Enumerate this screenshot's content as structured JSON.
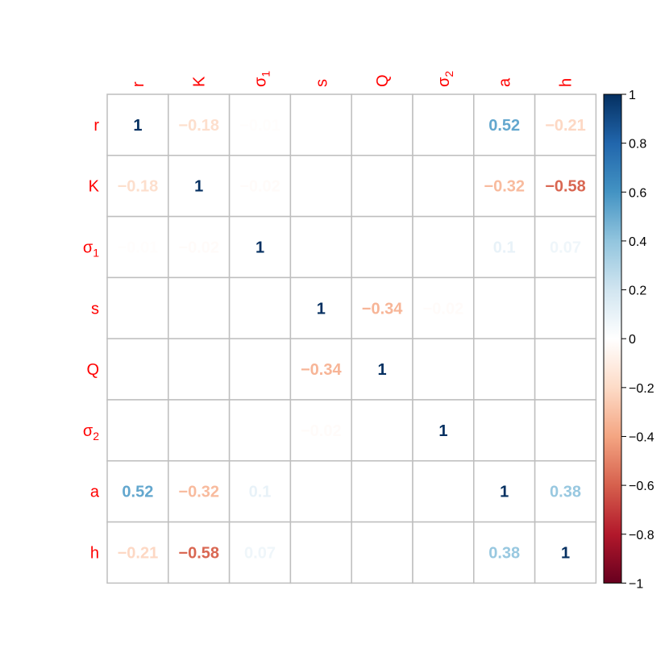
{
  "chart_data": {
    "type": "heatmap",
    "title": "",
    "variables": [
      {
        "base": "r",
        "sub": ""
      },
      {
        "base": "K",
        "sub": ""
      },
      {
        "base": "σ",
        "sub": "1"
      },
      {
        "base": "s",
        "sub": ""
      },
      {
        "base": "Q",
        "sub": ""
      },
      {
        "base": "σ",
        "sub": "2"
      },
      {
        "base": "a",
        "sub": ""
      },
      {
        "base": "h",
        "sub": ""
      }
    ],
    "matrix": [
      [
        1,
        -0.18,
        -0.01,
        0,
        0,
        0,
        0.52,
        -0.21
      ],
      [
        -0.18,
        1,
        -0.02,
        0,
        0,
        0,
        -0.32,
        -0.58
      ],
      [
        -0.01,
        -0.02,
        1,
        0,
        0,
        0,
        0.1,
        0.07
      ],
      [
        0,
        0,
        0,
        1,
        -0.34,
        -0.02,
        0,
        0
      ],
      [
        0,
        0,
        0,
        -0.34,
        1,
        0,
        0,
        0
      ],
      [
        0,
        0,
        0,
        -0.02,
        0,
        1,
        0,
        0
      ],
      [
        0.52,
        -0.32,
        0.1,
        0,
        0,
        0,
        1,
        0.38
      ],
      [
        -0.21,
        -0.58,
        0.07,
        0,
        0,
        0,
        0.38,
        1
      ]
    ],
    "displayed_labels": [
      [
        "1",
        "−0.18",
        "−0.01",
        "",
        "",
        "",
        "0.52",
        "−0.21"
      ],
      [
        "−0.18",
        "1",
        "−0.02",
        "",
        "",
        "",
        "−0.32",
        "−0.58"
      ],
      [
        "−0.01",
        "−0.02",
        "1",
        "",
        "",
        "",
        "0.1",
        "0.07"
      ],
      [
        "",
        "",
        "",
        "1",
        "−0.34",
        "−0.02",
        "",
        ""
      ],
      [
        "",
        "",
        "",
        "−0.34",
        "1",
        "",
        "",
        ""
      ],
      [
        "",
        "",
        "",
        "−0.02",
        "",
        "1",
        "",
        ""
      ],
      [
        "0.52",
        "−0.32",
        "0.1",
        "",
        "",
        "",
        "1",
        "0.38"
      ],
      [
        "−0.21",
        "−0.58",
        "0.07",
        "",
        "",
        "",
        "0.38",
        "1"
      ]
    ],
    "colorbar": {
      "range": [
        -1,
        1
      ],
      "ticks": [
        "1",
        "0.8",
        "0.6",
        "0.4",
        "0.2",
        "0",
        "−0.2",
        "−0.4",
        "−0.6",
        "−0.8",
        "−1"
      ],
      "palette": [
        "#67001F",
        "#B2182B",
        "#D6604D",
        "#F4A582",
        "#FDDBC7",
        "#FFFFFF",
        "#D1E5F0",
        "#92C5DE",
        "#4393C3",
        "#2166AC",
        "#053061"
      ]
    },
    "label_color": "#ff0000",
    "grid": true
  }
}
